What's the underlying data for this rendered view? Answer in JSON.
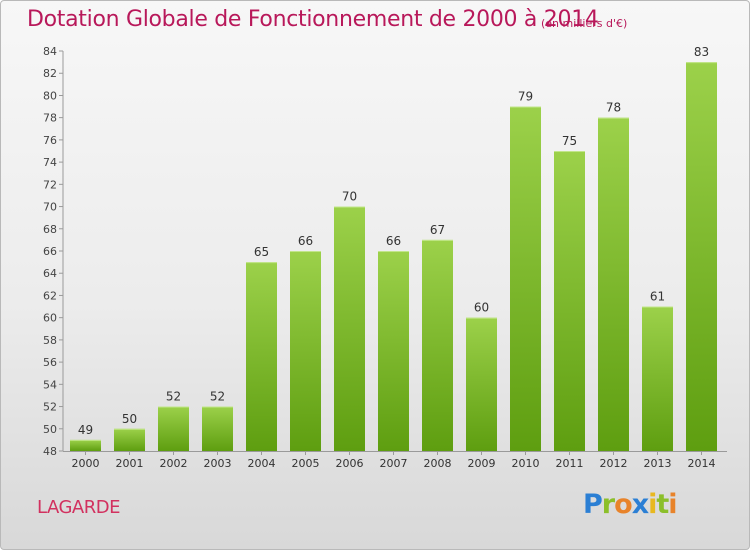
{
  "header": {
    "title": "Dotation Globale de Fonctionnement de 2000 à 2014",
    "subtitle": "(en milliers d'€)"
  },
  "footer": {
    "place": "LAGARDE",
    "logo_text": "Proxiti"
  },
  "colors": {
    "title": "#b8185a",
    "bar_top": "#9cd14a",
    "bar_bottom": "#5e9e10",
    "place": "#d2315f"
  },
  "chart_data": {
    "type": "bar",
    "categories": [
      "2000",
      "2001",
      "2002",
      "2003",
      "2004",
      "2005",
      "2006",
      "2007",
      "2008",
      "2009",
      "2010",
      "2011",
      "2012",
      "2013",
      "2014"
    ],
    "values": [
      49,
      50,
      52,
      52,
      65,
      66,
      70,
      66,
      67,
      60,
      79,
      75,
      78,
      61,
      83
    ],
    "ylim": [
      48,
      84
    ],
    "yticks": [
      48,
      50,
      52,
      54,
      56,
      58,
      60,
      62,
      64,
      66,
      68,
      70,
      72,
      74,
      76,
      78,
      80,
      82,
      84
    ],
    "grid": false
  }
}
